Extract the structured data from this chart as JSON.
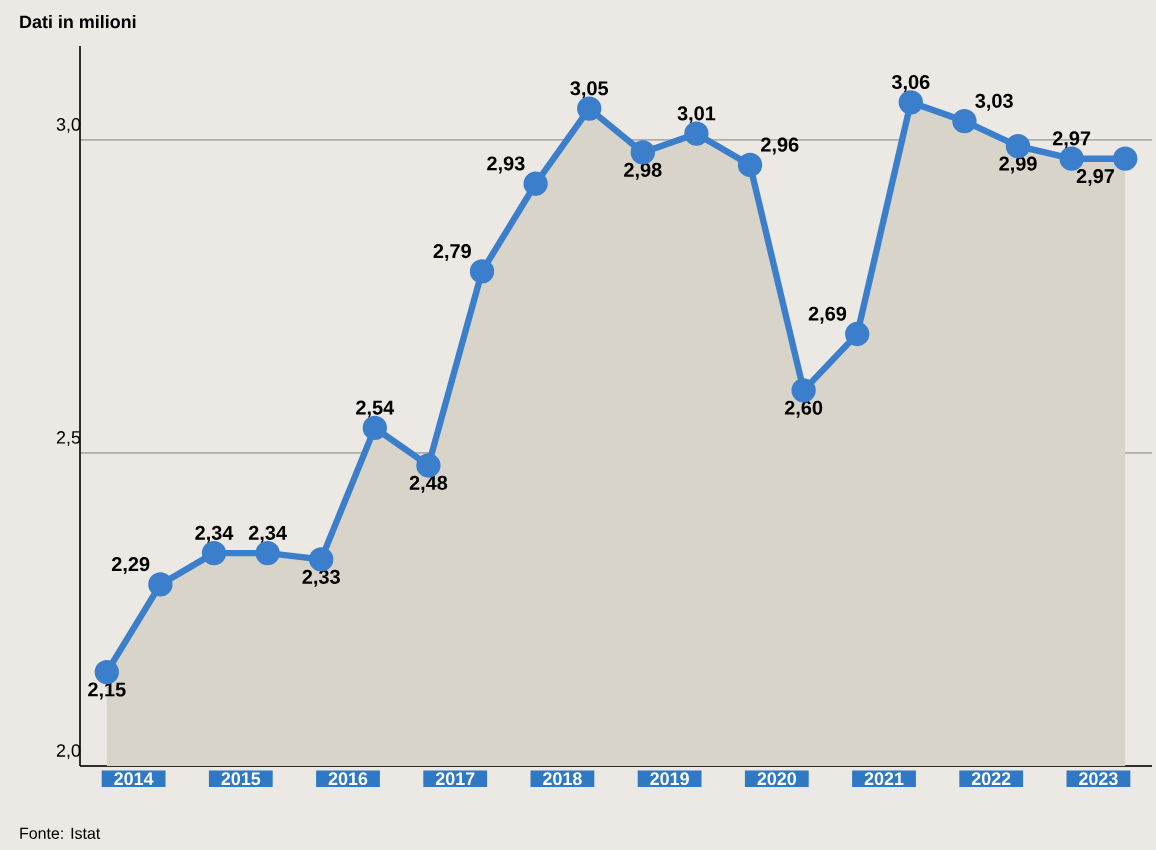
{
  "chart_data": {
    "type": "area",
    "title": "Dati in milioni",
    "annotations": [
      "Fonte: Istat"
    ],
    "x": [
      2014.25,
      2014.75,
      2015.25,
      2015.75,
      2016.25,
      2016.75,
      2017.25,
      2017.75,
      2018.25,
      2018.75,
      2019.25,
      2019.75,
      2020.25,
      2020.75,
      2021.25,
      2021.75,
      2022.25,
      2022.75,
      2023.25,
      2023.75
    ],
    "series": [
      {
        "color": "#3b7fcc",
        "values": [
          2.15,
          2.29,
          2.34,
          2.34,
          2.33,
          2.54,
          2.48,
          2.79,
          2.93,
          3.05,
          2.98,
          3.01,
          2.96,
          2.6,
          2.69,
          3.06,
          3.03,
          2.99,
          2.97,
          2.97
        ],
        "value_labels": [
          "2,15",
          "2,29",
          "2,34",
          "2,34",
          "2,33",
          "2,54",
          "2,48",
          "2,79",
          "2,93",
          "3,05",
          "2,98",
          "3,01",
          "2,96",
          "2,60",
          "2,69",
          "3,06",
          "3,03",
          "2,99",
          "2,97",
          "2,97"
        ]
      }
    ],
    "xlim": [
      2014.0,
      2024.0
    ],
    "xticks": [
      {
        "value": 2014.5,
        "label": "2014"
      },
      {
        "value": 2015.5,
        "label": "2015"
      },
      {
        "value": 2016.5,
        "label": "2016"
      },
      {
        "value": 2017.5,
        "label": "2017"
      },
      {
        "value": 2018.5,
        "label": "2018"
      },
      {
        "value": 2019.5,
        "label": "2019"
      },
      {
        "value": 2020.5,
        "label": "2020"
      },
      {
        "value": 2021.5,
        "label": "2021"
      },
      {
        "value": 2022.5,
        "label": "2022"
      },
      {
        "value": 2023.5,
        "label": "2023"
      }
    ],
    "ylim": [
      2.0,
      3.15
    ],
    "yticks": [
      {
        "value": 2.0,
        "label": "2,0"
      },
      {
        "value": 2.5,
        "label": "2,5"
      },
      {
        "value": 3.0,
        "label": "3,0"
      }
    ],
    "grid": "y",
    "marker": "circle",
    "line_style": "solid"
  }
}
